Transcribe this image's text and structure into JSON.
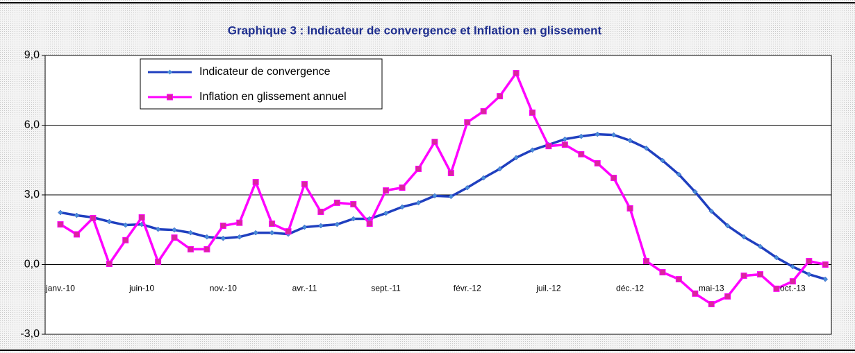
{
  "chart_data": {
    "type": "line",
    "title": "Graphique 3 : Indicateur de convergence et Inflation en glissement",
    "categories": [
      "janv.-10",
      null,
      null,
      null,
      null,
      "juin-10",
      null,
      null,
      null,
      null,
      "nov.-10",
      null,
      null,
      null,
      null,
      "avr.-11",
      null,
      null,
      null,
      null,
      "sept.-11",
      null,
      null,
      null,
      null,
      "févr.-12",
      null,
      null,
      null,
      null,
      "juil.-12",
      null,
      null,
      null,
      null,
      "déc.-12",
      null,
      null,
      null,
      null,
      "mai-13",
      null,
      null,
      null,
      null,
      "oct.-13",
      null,
      null
    ],
    "series": [
      {
        "name": "Indicateur de convergence",
        "color": "#1f3fbf",
        "marker": "diamond",
        "values": [
          2.24,
          2.12,
          2.03,
          1.85,
          1.7,
          1.73,
          1.52,
          1.49,
          1.37,
          1.19,
          1.13,
          1.19,
          1.37,
          1.37,
          1.31,
          1.61,
          1.67,
          1.73,
          1.97,
          1.97,
          2.21,
          2.48,
          2.66,
          2.96,
          2.93,
          3.31,
          3.73,
          4.12,
          4.6,
          4.93,
          5.16,
          5.4,
          5.52,
          5.61,
          5.58,
          5.34,
          5.01,
          4.48,
          3.88,
          3.13,
          2.3,
          1.67,
          1.19,
          0.78,
          0.3,
          -0.09,
          -0.42,
          -0.63
        ]
      },
      {
        "name": "Inflation en glissement annuel",
        "color": "#ff00ff",
        "marker": "square",
        "values": [
          1.73,
          1.3,
          2.0,
          0.03,
          1.05,
          2.03,
          0.12,
          1.16,
          0.66,
          0.66,
          1.67,
          1.8,
          3.55,
          1.76,
          1.43,
          3.46,
          2.27,
          2.66,
          2.6,
          1.76,
          3.19,
          3.31,
          4.12,
          5.28,
          3.94,
          6.12,
          6.6,
          7.25,
          8.24,
          6.54,
          5.1,
          5.16,
          4.75,
          4.36,
          3.73,
          2.42,
          0.15,
          -0.33,
          -0.63,
          -1.25,
          -1.7,
          -1.37,
          -0.48,
          -0.42,
          -1.04,
          -0.72,
          0.15,
          0.0
        ]
      }
    ],
    "ylim": [
      -3,
      9
    ],
    "yticks": [
      {
        "value": -3,
        "label": "-3,0"
      },
      {
        "value": 0,
        "label": "0,0"
      },
      {
        "value": 3,
        "label": "3,0"
      },
      {
        "value": 6,
        "label": "6,0"
      },
      {
        "value": 9,
        "label": "9,0"
      }
    ],
    "grid": true,
    "legend": "upper left"
  }
}
